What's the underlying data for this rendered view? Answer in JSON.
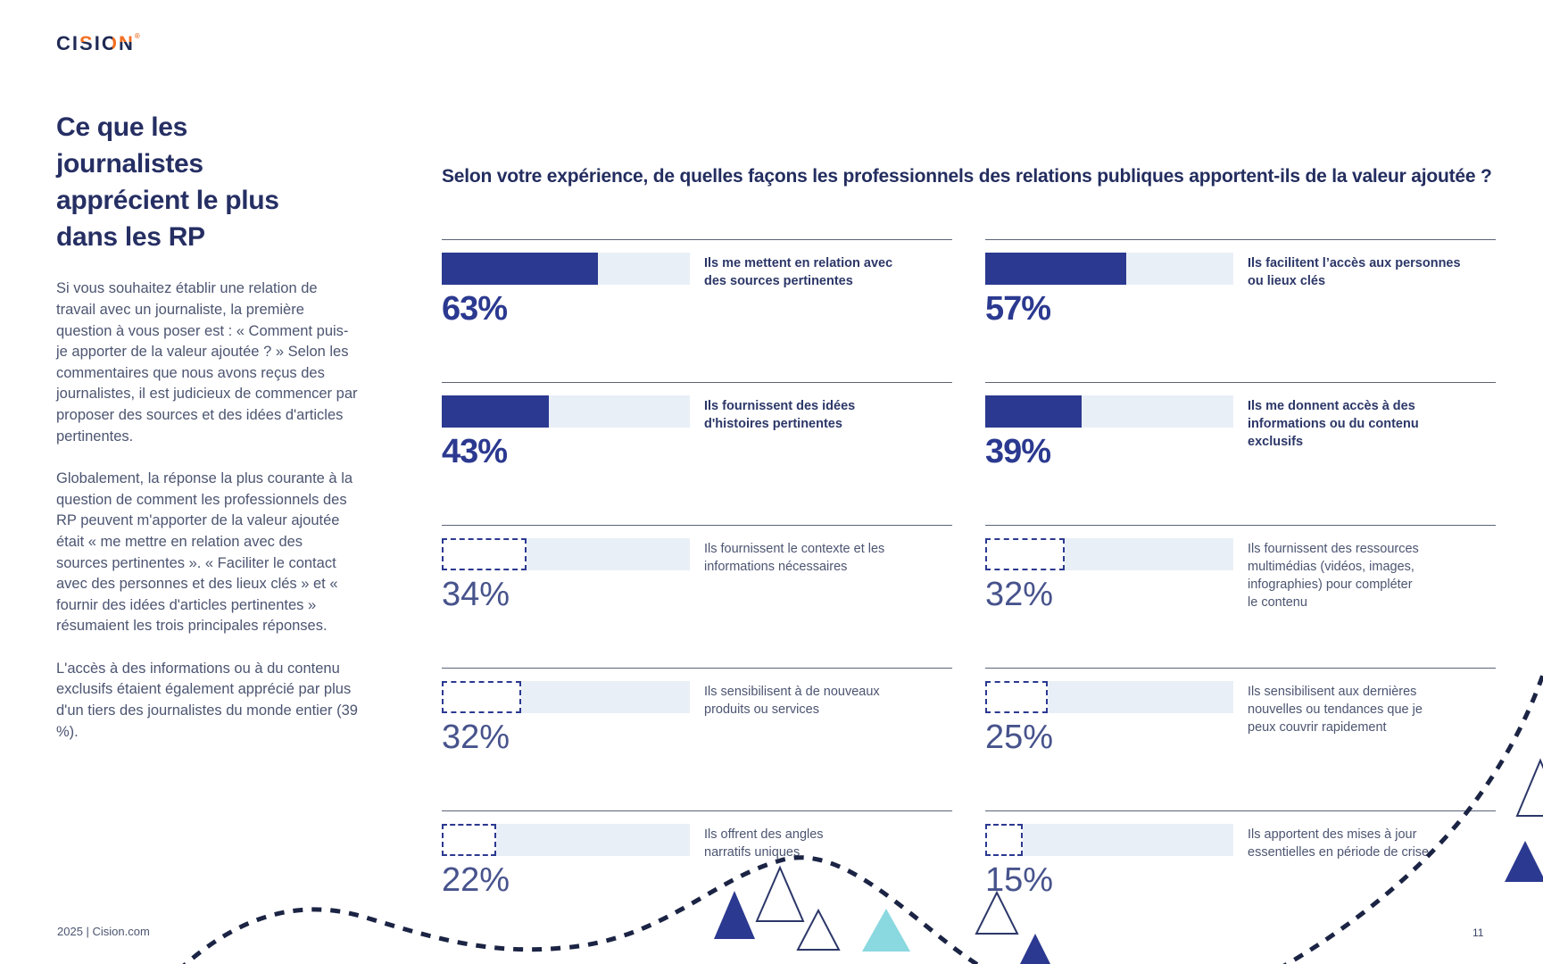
{
  "logo": {
    "letters": [
      "C",
      "I",
      "S",
      "I",
      "O",
      "N"
    ],
    "registered": "®"
  },
  "sidebar": {
    "title": "Ce que les journalistes apprécient le plus dans les RP",
    "paragraphs": [
      "Si vous souhaitez établir une relation de travail avec un journaliste, la première question à vous poser est : « Comment puis-je apporter de la valeur ajoutée ? » Selon les commentaires que nous avons reçus des journalistes, il est judicieux de commencer par proposer des sources et des idées d'articles pertinentes.",
      "Globalement, la réponse la plus courante à la question de comment les professionnels des RP peuvent m'apporter de la valeur ajoutée était « me mettre en relation avec des sources pertinentes ». « Faciliter le contact avec des personnes et des lieux clés » et « fournir des idées d'articles pertinentes » résumaient les trois principales réponses.",
      "L'accès à des informations ou à du contenu exclusifs étaient également apprécié par plus d'un tiers des journalistes du monde entier (39 %)."
    ]
  },
  "chart_data": {
    "type": "bar",
    "orientation": "horizontal",
    "unit": "%",
    "xlim": [
      0,
      100
    ],
    "title": "Selon votre expérience, de quelles façons les professionnels des relations publiques apportent-ils de la valeur ajoutée ?",
    "columns": [
      {
        "rows": [
          {
            "value": 63,
            "display": "63%",
            "style": "filled",
            "label": "Ils me mettent en relation avec\ndes sources pertinentes"
          },
          {
            "value": 43,
            "display": "43%",
            "style": "filled",
            "label": "Ils fournissent des idées\nd'histoires pertinentes"
          },
          {
            "value": 34,
            "display": "34%",
            "style": "dashed",
            "label": "Ils fournissent le contexte et les\ninformations nécessaires"
          },
          {
            "value": 32,
            "display": "32%",
            "style": "dashed",
            "label": "Ils sensibilisent à de nouveaux\nproduits ou services"
          },
          {
            "value": 22,
            "display": "22%",
            "style": "dashed",
            "label": "Ils offrent des angles\nnarratifs uniques"
          }
        ]
      },
      {
        "rows": [
          {
            "value": 57,
            "display": "57%",
            "style": "filled",
            "label": "Ils facilitent l’accès aux personnes\nou lieux clés"
          },
          {
            "value": 39,
            "display": "39%",
            "style": "filled",
            "label": "Ils me donnent accès à des\ninformations ou du contenu\nexclusifs"
          },
          {
            "value": 32,
            "display": "32%",
            "style": "dashed",
            "label": "Ils fournissent des ressources\nmultimédias (vidéos, images,\ninfographies) pour compléter\nle contenu"
          },
          {
            "value": 25,
            "display": "25%",
            "style": "dashed",
            "label": "Ils sensibilisent aux dernières\nnouvelles ou tendances que je\npeux couvrir rapidement"
          },
          {
            "value": 15,
            "display": "15%",
            "style": "dashed",
            "label": "Ils apportent des mises à jour\nessentielles en période de crise"
          }
        ]
      }
    ]
  },
  "footer": {
    "left": "2025 | Cision.com",
    "page_number": "11"
  },
  "colors": {
    "indigo_fill": "#2B3990",
    "track_light": "#E9EFF6",
    "heading_navy": "#232D5F",
    "body_slate": "#4C5571",
    "muted_value": "#47538C",
    "rule": "#5A6377",
    "dash_curve": "#1B2444",
    "teal_triangle": "#8AD8E0",
    "logo_navy": "#1F2A54",
    "logo_orange": "#F26F21"
  }
}
